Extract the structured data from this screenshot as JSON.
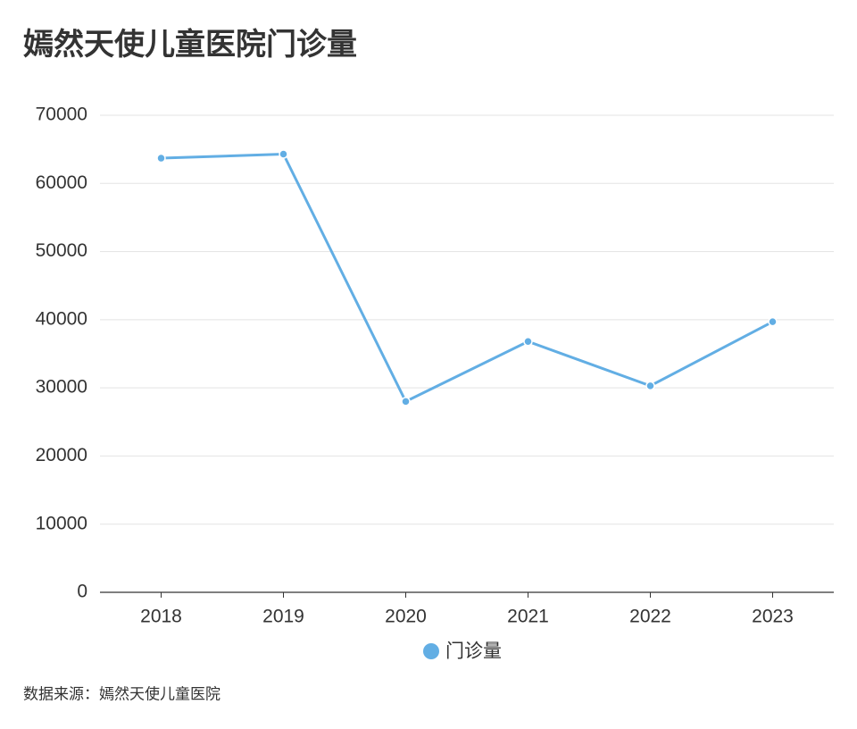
{
  "chart_data": {
    "type": "line",
    "title": "嫣然天使儿童医院门诊量",
    "categories": [
      "2018",
      "2019",
      "2020",
      "2021",
      "2022",
      "2023"
    ],
    "series": [
      {
        "name": "门诊量",
        "color": "#62aee4",
        "values": [
          63700,
          64300,
          28000,
          36800,
          30300,
          39700
        ]
      }
    ],
    "ylim": [
      0,
      70000
    ],
    "yticks": [
      0,
      10000,
      20000,
      30000,
      40000,
      50000,
      60000,
      70000
    ],
    "grid": true,
    "legend": "bottom",
    "source": "数据来源：嫣然天使儿童医院"
  }
}
